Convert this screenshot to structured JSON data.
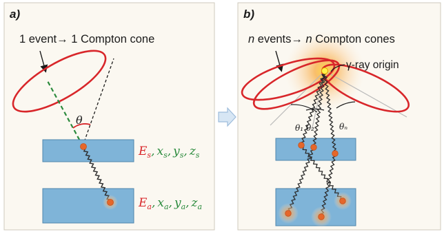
{
  "panel_a": {
    "label": "a)",
    "caption": "1 event→ 1 Compton cone",
    "theta": "θ",
    "scatter_eq": {
      "E": "E",
      "Es": "s",
      "x": "x",
      "xs": "s",
      "y": "y",
      "ys": "s",
      "z": "z",
      "zs": "s"
    },
    "absorb_eq": {
      "E": "E",
      "Ea": "a",
      "x": "x",
      "xa": "a",
      "y": "y",
      "ya": "a",
      "z": "z",
      "za": "a"
    }
  },
  "panel_b": {
    "label": "b)",
    "caption_n1": "n",
    "caption_mid": " events→ ",
    "caption_n2": "n",
    "caption_end": " Compton cones",
    "origin_label": "γ-ray origin",
    "theta_labels": [
      "θ₁",
      "θ₂",
      "θₙ"
    ]
  },
  "colors": {
    "panel_bg": "#fbf8f1",
    "detector": "#7fb4d8",
    "cone": "#d8262a",
    "green": "#2a8a3c",
    "orange": "#e87b3a",
    "arrow": "#bcd3ea"
  }
}
